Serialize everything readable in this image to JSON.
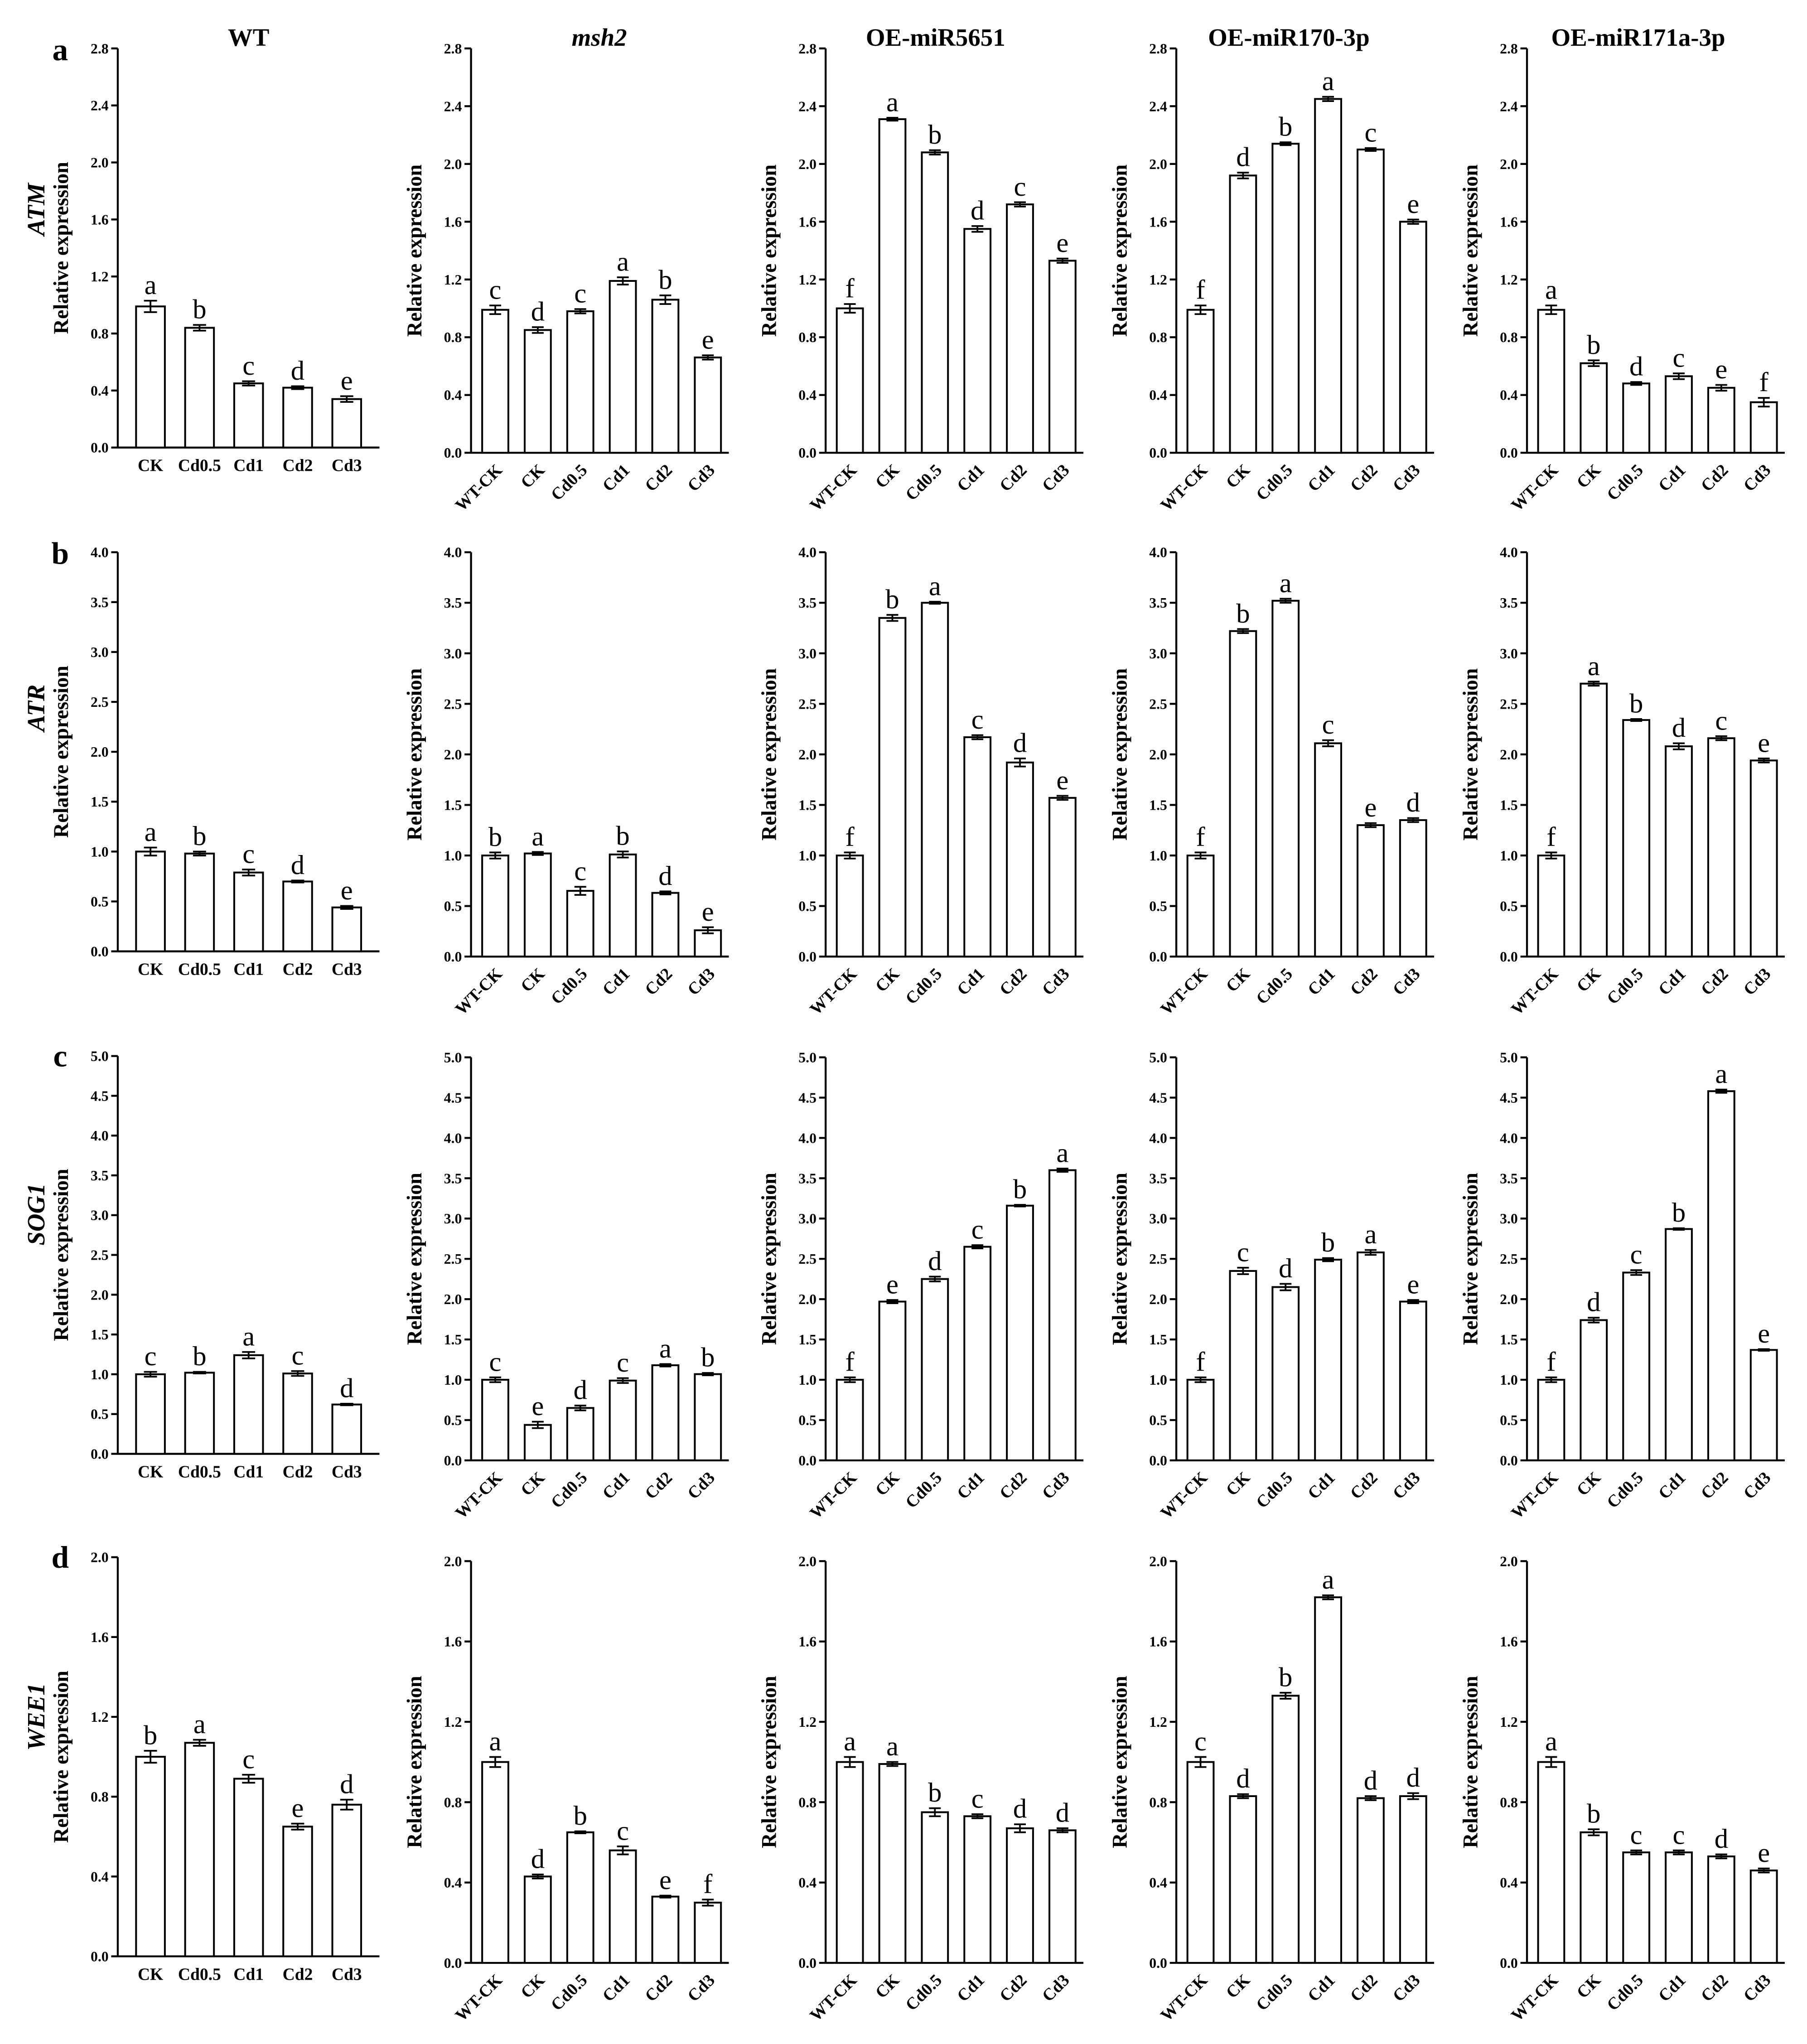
{
  "figure": {
    "column_titles": [
      "WT",
      "msh2",
      "OE-miR5651",
      "OE-miR170-3p",
      "OE-miR171a-3p"
    ],
    "rows": [
      {
        "panel": "a",
        "gene": "ATM"
      },
      {
        "panel": "b",
        "gene": "ATR"
      },
      {
        "panel": "c",
        "gene": "SOG1"
      },
      {
        "panel": "d",
        "gene": "WEE1"
      }
    ],
    "colors": {
      "bar_fill": "#ffffff",
      "bar_stroke": "#000000",
      "text": "#000000"
    }
  },
  "chart_data": [
    {
      "type": "bar",
      "ylabel": "Relative expression",
      "categories": [
        "CK",
        "Cd0.5",
        "Cd1",
        "Cd2",
        "Cd3"
      ],
      "values": [
        0.99,
        0.84,
        0.45,
        0.42,
        0.34
      ],
      "errors": [
        0.04,
        0.02,
        0.015,
        0.01,
        0.02
      ],
      "letters": [
        "a",
        "b",
        "c",
        "d",
        "e"
      ],
      "ylim": [
        0,
        2.8
      ],
      "yticks": [
        "0.0",
        "0.4",
        "0.8",
        "1.2",
        "1.6",
        "2.0",
        "2.4",
        "2.8"
      ]
    },
    {
      "type": "bar",
      "ylabel": "Relative expression",
      "categories": [
        "WT-CK",
        "CK",
        "Cd0.5",
        "Cd1",
        "Cd2",
        "Cd3"
      ],
      "values": [
        0.99,
        0.85,
        0.98,
        1.19,
        1.06,
        0.66
      ],
      "errors": [
        0.03,
        0.02,
        0.015,
        0.025,
        0.03,
        0.015
      ],
      "letters": [
        "c",
        "d",
        "c",
        "a",
        "b",
        "e"
      ],
      "ylim": [
        0,
        2.8
      ],
      "yticks": [
        "0.0",
        "0.4",
        "0.8",
        "1.2",
        "1.6",
        "2.0",
        "2.4",
        "2.8"
      ]
    },
    {
      "type": "bar",
      "ylabel": "Relative expression",
      "categories": [
        "WT-CK",
        "CK",
        "Cd0.5",
        "Cd1",
        "Cd2",
        "Cd3"
      ],
      "values": [
        1.0,
        2.31,
        2.08,
        1.55,
        1.72,
        1.33
      ],
      "errors": [
        0.03,
        0.01,
        0.015,
        0.02,
        0.015,
        0.015
      ],
      "letters": [
        "f",
        "a",
        "b",
        "d",
        "c",
        "e"
      ],
      "ylim": [
        0,
        2.8
      ],
      "yticks": [
        "0.0",
        "0.4",
        "0.8",
        "1.2",
        "1.6",
        "2.0",
        "2.4",
        "2.8"
      ]
    },
    {
      "type": "bar",
      "ylabel": "Relative expression",
      "categories": [
        "WT-CK",
        "CK",
        "Cd0.5",
        "Cd1",
        "Cd2",
        "Cd3"
      ],
      "values": [
        0.99,
        1.92,
        2.14,
        2.45,
        2.1,
        1.6
      ],
      "errors": [
        0.03,
        0.02,
        0.01,
        0.015,
        0.01,
        0.015
      ],
      "letters": [
        "f",
        "d",
        "b",
        "a",
        "c",
        "e"
      ],
      "ylim": [
        0,
        2.8
      ],
      "yticks": [
        "0.0",
        "0.4",
        "0.8",
        "1.2",
        "1.6",
        "2.0",
        "2.4",
        "2.8"
      ]
    },
    {
      "type": "bar",
      "ylabel": "Relative expression",
      "categories": [
        "WT-CK",
        "CK",
        "Cd0.5",
        "Cd1",
        "Cd2",
        "Cd3"
      ],
      "values": [
        0.99,
        0.62,
        0.48,
        0.53,
        0.45,
        0.35
      ],
      "errors": [
        0.03,
        0.02,
        0.01,
        0.02,
        0.02,
        0.03
      ],
      "letters": [
        "a",
        "b",
        "d",
        "c",
        "e",
        "f"
      ],
      "ylim": [
        0,
        2.8
      ],
      "yticks": [
        "0.0",
        "0.4",
        "0.8",
        "1.2",
        "1.6",
        "2.0",
        "2.4",
        "2.8"
      ]
    },
    {
      "type": "bar",
      "ylabel": "Relative expression",
      "categories": [
        "CK",
        "Cd0.5",
        "Cd1",
        "Cd2",
        "Cd3"
      ],
      "values": [
        1.0,
        0.98,
        0.79,
        0.7,
        0.44
      ],
      "errors": [
        0.04,
        0.02,
        0.03,
        0.01,
        0.015
      ],
      "letters": [
        "a",
        "b",
        "c",
        "d",
        "e"
      ],
      "ylim": [
        0,
        4.0
      ],
      "yticks": [
        "0.0",
        "0.5",
        "1.0",
        "1.5",
        "2.0",
        "2.5",
        "3.0",
        "3.5",
        "4.0"
      ]
    },
    {
      "type": "bar",
      "ylabel": "Relative expression",
      "categories": [
        "WT-CK",
        "CK",
        "Cd0.5",
        "Cd1",
        "Cd2",
        "Cd3"
      ],
      "values": [
        1.0,
        1.02,
        0.65,
        1.01,
        0.63,
        0.26
      ],
      "errors": [
        0.03,
        0.015,
        0.04,
        0.03,
        0.015,
        0.03
      ],
      "letters": [
        "b",
        "a",
        "c",
        "b",
        "d",
        "e"
      ],
      "ylim": [
        0,
        4.0
      ],
      "yticks": [
        "0.0",
        "0.5",
        "1.0",
        "1.5",
        "2.0",
        "2.5",
        "3.0",
        "3.5",
        "4.0"
      ]
    },
    {
      "type": "bar",
      "ylabel": "Relative expression",
      "categories": [
        "WT-CK",
        "CK",
        "Cd0.5",
        "Cd1",
        "Cd2",
        "Cd3"
      ],
      "values": [
        1.0,
        3.35,
        3.5,
        2.17,
        1.92,
        1.57
      ],
      "errors": [
        0.03,
        0.03,
        0.01,
        0.02,
        0.04,
        0.02
      ],
      "letters": [
        "f",
        "b",
        "a",
        "c",
        "d",
        "e"
      ],
      "ylim": [
        0,
        4.0
      ],
      "yticks": [
        "0.0",
        "0.5",
        "1.0",
        "1.5",
        "2.0",
        "2.5",
        "3.0",
        "3.5",
        "4.0"
      ]
    },
    {
      "type": "bar",
      "ylabel": "Relative expression",
      "categories": [
        "WT-CK",
        "CK",
        "Cd0.5",
        "Cd1",
        "Cd2",
        "Cd3"
      ],
      "values": [
        1.0,
        3.22,
        3.52,
        2.11,
        1.3,
        1.35
      ],
      "errors": [
        0.03,
        0.02,
        0.02,
        0.03,
        0.02,
        0.02
      ],
      "letters": [
        "f",
        "b",
        "a",
        "c",
        "e",
        "d"
      ],
      "ylim": [
        0,
        4.0
      ],
      "yticks": [
        "0.0",
        "0.5",
        "1.0",
        "1.5",
        "2.0",
        "2.5",
        "3.0",
        "3.5",
        "4.0"
      ]
    },
    {
      "type": "bar",
      "ylabel": "Relative expression",
      "categories": [
        "WT-CK",
        "CK",
        "Cd0.5",
        "Cd1",
        "Cd2",
        "Cd3"
      ],
      "values": [
        1.0,
        2.7,
        2.34,
        2.08,
        2.16,
        1.94
      ],
      "errors": [
        0.03,
        0.02,
        0.01,
        0.03,
        0.02,
        0.02
      ],
      "letters": [
        "f",
        "a",
        "b",
        "d",
        "c",
        "e"
      ],
      "ylim": [
        0,
        4.0
      ],
      "yticks": [
        "0.0",
        "0.5",
        "1.0",
        "1.5",
        "2.0",
        "2.5",
        "3.0",
        "3.5",
        "4.0"
      ]
    },
    {
      "type": "bar",
      "ylabel": "Relative expression",
      "categories": [
        "CK",
        "Cd0.5",
        "Cd1",
        "Cd2",
        "Cd3"
      ],
      "values": [
        1.0,
        1.02,
        1.24,
        1.01,
        0.62
      ],
      "errors": [
        0.03,
        0.01,
        0.04,
        0.03,
        0.01
      ],
      "letters": [
        "c",
        "b",
        "a",
        "c",
        "d"
      ],
      "ylim": [
        0,
        5.0
      ],
      "yticks": [
        "0.0",
        "0.5",
        "1.0",
        "1.5",
        "2.0",
        "2.5",
        "3.0",
        "3.5",
        "4.0",
        "4.5",
        "5.0"
      ]
    },
    {
      "type": "bar",
      "ylabel": "Relative expression",
      "categories": [
        "WT-CK",
        "CK",
        "Cd0.5",
        "Cd1",
        "Cd2",
        "Cd3"
      ],
      "values": [
        1.0,
        0.44,
        0.65,
        0.99,
        1.18,
        1.07
      ],
      "errors": [
        0.03,
        0.04,
        0.03,
        0.03,
        0.015,
        0.015
      ],
      "letters": [
        "c",
        "e",
        "d",
        "c",
        "a",
        "b"
      ],
      "ylim": [
        0,
        5.0
      ],
      "yticks": [
        "0.0",
        "0.5",
        "1.0",
        "1.5",
        "2.0",
        "2.5",
        "3.0",
        "3.5",
        "4.0",
        "4.5",
        "5.0"
      ]
    },
    {
      "type": "bar",
      "ylabel": "Relative expression",
      "categories": [
        "WT-CK",
        "CK",
        "Cd0.5",
        "Cd1",
        "Cd2",
        "Cd3"
      ],
      "values": [
        1.0,
        1.97,
        2.25,
        2.65,
        3.16,
        3.6
      ],
      "errors": [
        0.03,
        0.02,
        0.03,
        0.02,
        0.01,
        0.02
      ],
      "letters": [
        "f",
        "e",
        "d",
        "c",
        "b",
        "a"
      ],
      "ylim": [
        0,
        5.0
      ],
      "yticks": [
        "0.0",
        "0.5",
        "1.0",
        "1.5",
        "2.0",
        "2.5",
        "3.0",
        "3.5",
        "4.0",
        "4.5",
        "5.0"
      ]
    },
    {
      "type": "bar",
      "ylabel": "Relative expression",
      "categories": [
        "WT-CK",
        "CK",
        "Cd0.5",
        "Cd1",
        "Cd2",
        "Cd3"
      ],
      "values": [
        1.0,
        2.35,
        2.15,
        2.49,
        2.58,
        1.97
      ],
      "errors": [
        0.03,
        0.04,
        0.04,
        0.02,
        0.03,
        0.02
      ],
      "letters": [
        "f",
        "c",
        "d",
        "b",
        "a",
        "e"
      ],
      "ylim": [
        0,
        5.0
      ],
      "yticks": [
        "0.0",
        "0.5",
        "1.0",
        "1.5",
        "2.0",
        "2.5",
        "3.0",
        "3.5",
        "4.0",
        "4.5",
        "5.0"
      ]
    },
    {
      "type": "bar",
      "ylabel": "Relative expression",
      "categories": [
        "WT-CK",
        "CK",
        "Cd0.5",
        "Cd1",
        "Cd2",
        "Cd3"
      ],
      "values": [
        1.0,
        1.74,
        2.33,
        2.87,
        4.58,
        1.37
      ],
      "errors": [
        0.03,
        0.03,
        0.03,
        0.01,
        0.02,
        0.01
      ],
      "letters": [
        "f",
        "d",
        "c",
        "b",
        "a",
        "e"
      ],
      "ylim": [
        0,
        5.0
      ],
      "yticks": [
        "0.0",
        "0.5",
        "1.0",
        "1.5",
        "2.0",
        "2.5",
        "3.0",
        "3.5",
        "4.0",
        "4.5",
        "5.0"
      ]
    },
    {
      "type": "bar",
      "ylabel": "Relative expression",
      "categories": [
        "CK",
        "Cd0.5",
        "Cd1",
        "Cd2",
        "Cd3"
      ],
      "values": [
        1.0,
        1.07,
        0.89,
        0.65,
        0.76
      ],
      "errors": [
        0.03,
        0.015,
        0.02,
        0.015,
        0.025
      ],
      "letters": [
        "b",
        "a",
        "c",
        "e",
        "d"
      ],
      "ylim": [
        0,
        2.0
      ],
      "yticks": [
        "0.0",
        "0.4",
        "0.8",
        "1.2",
        "1.6",
        "2.0"
      ]
    },
    {
      "type": "bar",
      "ylabel": "Relative expression",
      "categories": [
        "WT-CK",
        "CK",
        "Cd0.5",
        "Cd1",
        "Cd2",
        "Cd3"
      ],
      "values": [
        1.0,
        0.43,
        0.65,
        0.56,
        0.33,
        0.3
      ],
      "errors": [
        0.025,
        0.01,
        0.005,
        0.02,
        0.005,
        0.015
      ],
      "letters": [
        "a",
        "d",
        "b",
        "c",
        "e",
        "f"
      ],
      "ylim": [
        0,
        2.0
      ],
      "yticks": [
        "0.0",
        "0.4",
        "0.8",
        "1.2",
        "1.6",
        "2.0"
      ]
    },
    {
      "type": "bar",
      "ylabel": "Relative expression",
      "categories": [
        "WT-CK",
        "CK",
        "Cd0.5",
        "Cd1",
        "Cd2",
        "Cd3"
      ],
      "values": [
        1.0,
        0.99,
        0.75,
        0.73,
        0.67,
        0.66
      ],
      "errors": [
        0.025,
        0.01,
        0.02,
        0.01,
        0.02,
        0.01
      ],
      "letters": [
        "a",
        "a",
        "b",
        "c",
        "d",
        "d"
      ],
      "ylim": [
        0,
        2.0
      ],
      "yticks": [
        "0.0",
        "0.4",
        "0.8",
        "1.2",
        "1.6",
        "2.0"
      ]
    },
    {
      "type": "bar",
      "ylabel": "Relative expression",
      "categories": [
        "WT-CK",
        "CK",
        "Cd0.5",
        "Cd1",
        "Cd2",
        "Cd3"
      ],
      "values": [
        1.0,
        0.83,
        1.33,
        1.82,
        0.82,
        0.83
      ],
      "errors": [
        0.025,
        0.01,
        0.015,
        0.01,
        0.01,
        0.015
      ],
      "letters": [
        "c",
        "d",
        "b",
        "a",
        "d",
        "d"
      ],
      "ylim": [
        0,
        2.0
      ],
      "yticks": [
        "0.0",
        "0.4",
        "0.8",
        "1.2",
        "1.6",
        "2.0"
      ]
    },
    {
      "type": "bar",
      "ylabel": "Relative expression",
      "categories": [
        "WT-CK",
        "CK",
        "Cd0.5",
        "Cd1",
        "Cd2",
        "Cd3"
      ],
      "values": [
        1.0,
        0.65,
        0.55,
        0.55,
        0.53,
        0.46
      ],
      "errors": [
        0.025,
        0.015,
        0.01,
        0.01,
        0.01,
        0.01
      ],
      "letters": [
        "a",
        "b",
        "c",
        "c",
        "d",
        "e"
      ],
      "ylim": [
        0,
        2.0
      ],
      "yticks": [
        "0.0",
        "0.4",
        "0.8",
        "1.2",
        "1.6",
        "2.0"
      ]
    }
  ]
}
